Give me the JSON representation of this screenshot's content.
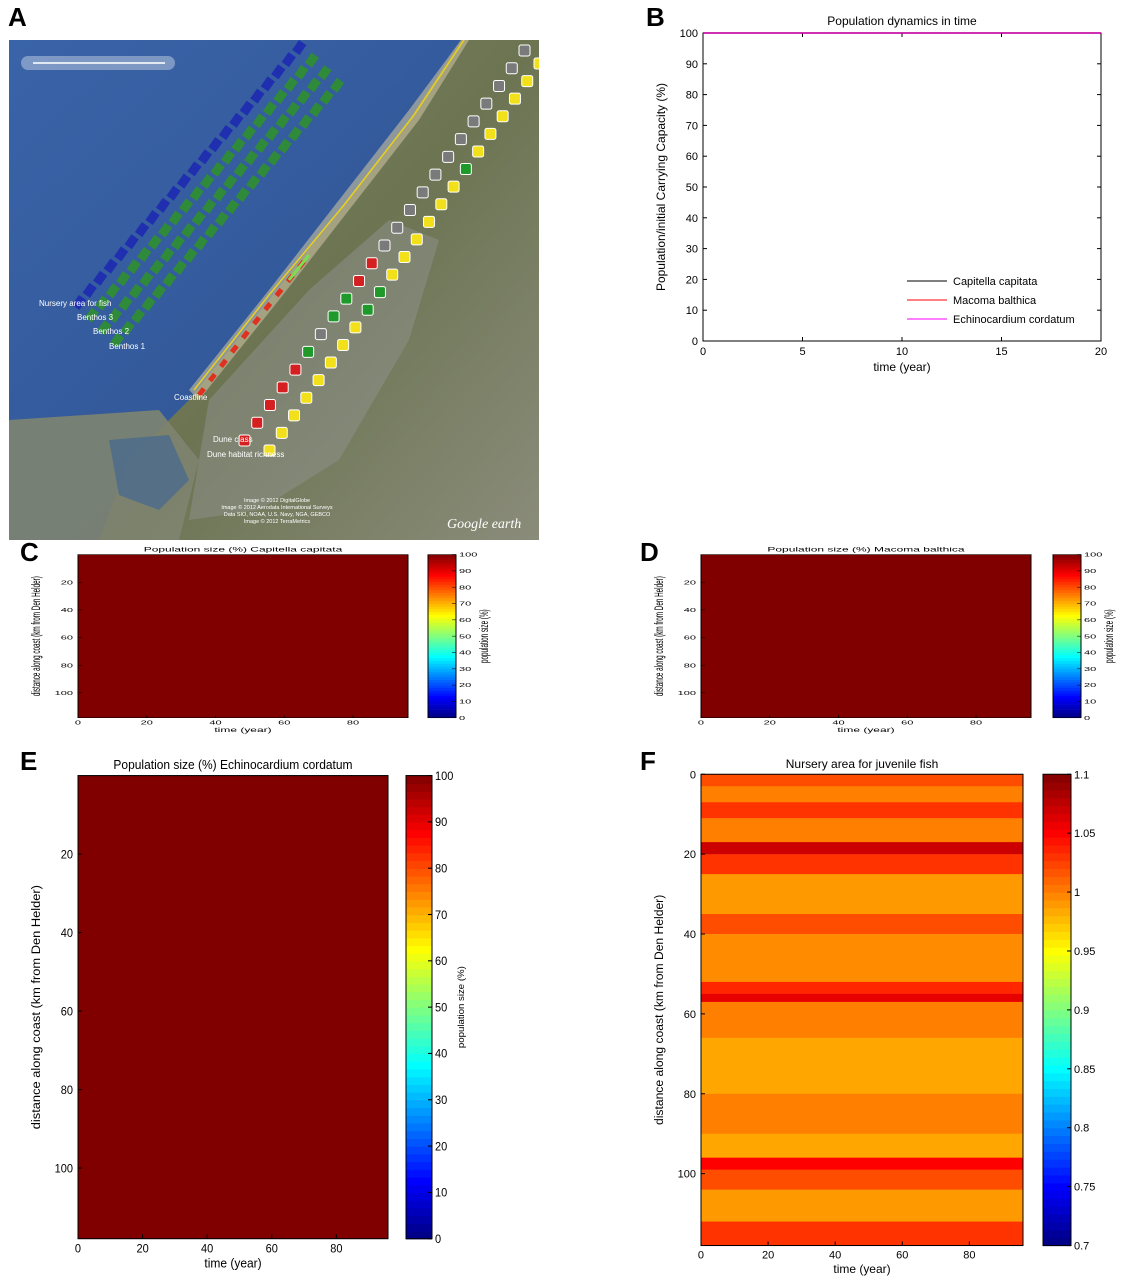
{
  "panels": {
    "A": {
      "letter": "A"
    },
    "B": {
      "letter": "B"
    },
    "C": {
      "letter": "C"
    },
    "D": {
      "letter": "D"
    },
    "E": {
      "letter": "E"
    },
    "F": {
      "letter": "F"
    }
  },
  "map": {
    "labels": [
      "Nursery area for fish",
      "Benthos 3",
      "Benthos 2",
      "Benthos 1",
      "Coastline",
      "Dune class",
      "Dune habitat richness"
    ],
    "credit_lines": [
      "Image © 2012 DigitalGlobe",
      "Image © 2012 Aerodata International Surveys",
      "Data SIO, NOAA, U.S. Navy, NGA, GEBCO",
      "Image © 2012 TerraMetrics"
    ],
    "brand": "Google earth",
    "colors": {
      "sea": "#2f5aa0",
      "land": "#6f7a58",
      "urban": "#8a8d8a",
      "benthos_blue": "#1f2fb0",
      "benthos_green": "#2f8a3a",
      "marker_yellow": "#f2e01a",
      "marker_gray": "#7a7a7a",
      "marker_red": "#d42020",
      "marker_green": "#1f9a2a",
      "coastline": "#e8d020"
    }
  },
  "chart_data": [
    {
      "panel": "B",
      "type": "line",
      "title": "Population dynamics in time",
      "xlabel": "time (year)",
      "ylabel": "Population/initial Carrying Capacity (%)",
      "xlim": [
        0,
        20
      ],
      "ylim": [
        0,
        100
      ],
      "xticks": [
        0,
        5,
        10,
        15,
        20
      ],
      "yticks": [
        0,
        10,
        20,
        30,
        40,
        50,
        60,
        70,
        80,
        90,
        100
      ],
      "legend": "bottom-right",
      "series": [
        {
          "name": "Capitella capitata",
          "color": "#000000",
          "x": [
            0,
            20
          ],
          "y": [
            100,
            100
          ]
        },
        {
          "name": "Macoma balthica",
          "color": "#ff0000",
          "x": [
            0,
            20
          ],
          "y": [
            100,
            100
          ]
        },
        {
          "name": "Echinocardium cordatum",
          "color": "#ff00ff",
          "x": [
            0,
            20
          ],
          "y": [
            100,
            100
          ]
        }
      ]
    },
    {
      "panel": "C",
      "type": "heatmap",
      "title": "Population size (%) Capitella capitata",
      "xlabel": "time (year)",
      "ylabel": "distance along coast (km from Den Helder)",
      "xlim": [
        0,
        96
      ],
      "ylim": [
        0,
        118
      ],
      "xticks": [
        0,
        20,
        40,
        60,
        80
      ],
      "yticks": [
        20,
        40,
        60,
        80,
        100
      ],
      "value": 100,
      "colorbar": {
        "label": "population size (%)",
        "range": [
          0,
          100
        ],
        "ticks": [
          0,
          10,
          20,
          30,
          40,
          50,
          60,
          70,
          80,
          90,
          100
        ]
      }
    },
    {
      "panel": "D",
      "type": "heatmap",
      "title": "Population size (%) Macoma balthica",
      "xlabel": "time (year)",
      "ylabel": "distance along coast (km from Den Helder)",
      "xlim": [
        0,
        96
      ],
      "ylim": [
        0,
        118
      ],
      "xticks": [
        0,
        20,
        40,
        60,
        80
      ],
      "yticks": [
        20,
        40,
        60,
        80,
        100
      ],
      "value": 100,
      "colorbar": {
        "label": "population size (%)",
        "range": [
          0,
          100
        ],
        "ticks": [
          0,
          10,
          20,
          30,
          40,
          50,
          60,
          70,
          80,
          90,
          100
        ]
      }
    },
    {
      "panel": "E",
      "type": "heatmap",
      "title": "Population size (%) Echinocardium cordatum",
      "xlabel": "time (year)",
      "ylabel": "distance along coast (km from Den Helder)",
      "xlim": [
        0,
        96
      ],
      "ylim": [
        0,
        118
      ],
      "xticks": [
        0,
        20,
        40,
        60,
        80
      ],
      "yticks": [
        20,
        40,
        60,
        80,
        100
      ],
      "value": 100,
      "colorbar": {
        "label": "population size (%)",
        "range": [
          0,
          100
        ],
        "ticks": [
          0,
          10,
          20,
          30,
          40,
          50,
          60,
          70,
          80,
          90,
          100
        ]
      }
    },
    {
      "panel": "F",
      "type": "heatmap",
      "title": "Nursery area for juvenile fish",
      "xlabel": "time (year)",
      "ylabel": "distance along coast (km from Den Helder)",
      "xlim": [
        0,
        96
      ],
      "ylim": [
        0,
        118
      ],
      "xticks": [
        0,
        20,
        40,
        60,
        80
      ],
      "yticks": [
        0,
        20,
        40,
        60,
        80,
        100
      ],
      "colorbar": {
        "label": "",
        "range": [
          0.7,
          1.1
        ],
        "ticks": [
          0.7,
          0.75,
          0.8,
          0.85,
          0.9,
          0.95,
          1,
          1.05,
          1.1
        ],
        "tick_labels": [
          "0.7",
          "0.75",
          "0.8",
          "0.85",
          "0.9",
          "0.95",
          "1",
          "1.05",
          "1.1"
        ]
      },
      "rows": [
        {
          "from": 0,
          "to": 3,
          "value": 1.02
        },
        {
          "from": 3,
          "to": 7,
          "value": 1.0
        },
        {
          "from": 7,
          "to": 11,
          "value": 1.03
        },
        {
          "from": 11,
          "to": 17,
          "value": 1.0
        },
        {
          "from": 17,
          "to": 20,
          "value": 1.07
        },
        {
          "from": 20,
          "to": 25,
          "value": 1.03
        },
        {
          "from": 25,
          "to": 35,
          "value": 0.99
        },
        {
          "from": 35,
          "to": 40,
          "value": 1.02
        },
        {
          "from": 40,
          "to": 52,
          "value": 0.995
        },
        {
          "from": 52,
          "to": 55,
          "value": 1.035
        },
        {
          "from": 55,
          "to": 57,
          "value": 1.06
        },
        {
          "from": 57,
          "to": 66,
          "value": 1.0
        },
        {
          "from": 66,
          "to": 80,
          "value": 0.985
        },
        {
          "from": 80,
          "to": 90,
          "value": 1.0
        },
        {
          "from": 90,
          "to": 96,
          "value": 0.985
        },
        {
          "from": 96,
          "to": 99,
          "value": 1.05
        },
        {
          "from": 99,
          "to": 104,
          "value": 1.02
        },
        {
          "from": 104,
          "to": 112,
          "value": 0.99
        },
        {
          "from": 112,
          "to": 118,
          "value": 1.03
        }
      ]
    }
  ]
}
